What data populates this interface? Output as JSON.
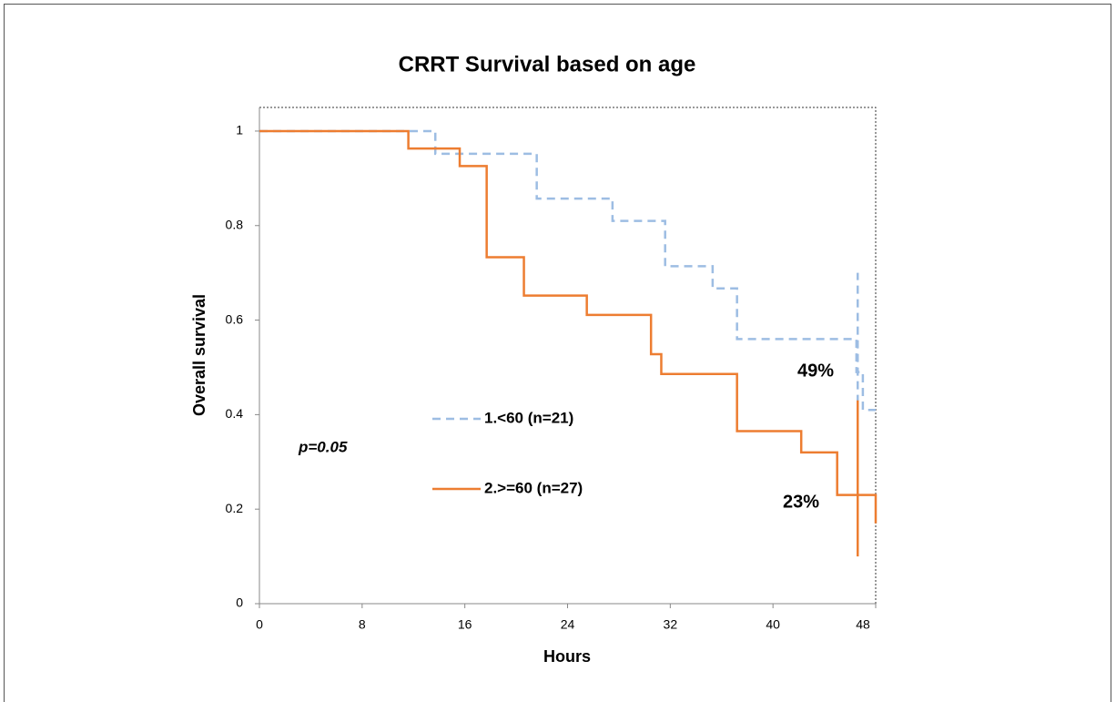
{
  "chart_data": {
    "type": "line",
    "title": "CRRT Survival  based on age",
    "xlabel": "Hours",
    "ylabel": "Overall survival",
    "xlim": [
      0,
      48
    ],
    "xticks": [
      0,
      8,
      16,
      24,
      32,
      40,
      48
    ],
    "ylim": [
      0,
      1.05
    ],
    "yticks": [
      0,
      0.2,
      0.4,
      0.6,
      0.8,
      1
    ],
    "grid": false,
    "series": [
      {
        "name": "1.<60 (n=21)",
        "color": "#9dbde3",
        "dash": true,
        "x": [
          0,
          13.7,
          13.7,
          21.6,
          21.6,
          27.5,
          27.5,
          31.6,
          31.6,
          35.3,
          35.3,
          37.2,
          37.2,
          46.5,
          46.5,
          47.0,
          47.0,
          48
        ],
        "values": [
          1,
          1,
          0.952,
          0.952,
          0.857,
          0.857,
          0.81,
          0.81,
          0.714,
          0.714,
          0.667,
          0.667,
          0.56,
          0.56,
          0.49,
          0.49,
          0.41,
          0.41
        ],
        "censor": {
          "x": 46.6,
          "low": 0.28,
          "high": 0.7
        }
      },
      {
        "name": "2.>=60 (n=27)",
        "color": "#ed7d31",
        "dash": false,
        "x": [
          0,
          11.6,
          11.6,
          15.6,
          15.6,
          17.7,
          17.7,
          20.6,
          20.6,
          25.5,
          25.5,
          30.5,
          30.5,
          31.3,
          31.3,
          37.2,
          37.2,
          42.2,
          42.2,
          45,
          45,
          48,
          48
        ],
        "values": [
          1,
          1,
          0.963,
          0.963,
          0.926,
          0.926,
          0.733,
          0.733,
          0.652,
          0.652,
          0.611,
          0.611,
          0.528,
          0.528,
          0.486,
          0.486,
          0.365,
          0.365,
          0.32,
          0.32,
          0.23,
          0.23,
          0.17
        ],
        "censor": {
          "x": 46.6,
          "low": 0.1,
          "high": 0.43
        }
      }
    ],
    "annotations": [
      "49%",
      "23%",
      "p=0.05"
    ]
  }
}
